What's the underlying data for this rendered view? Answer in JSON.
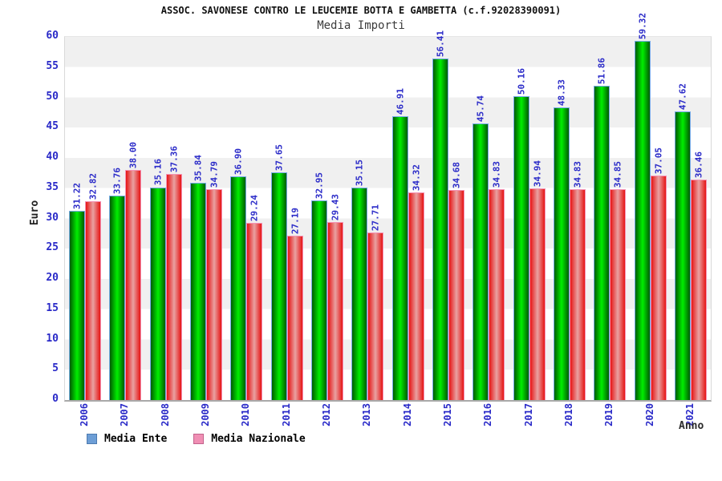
{
  "header": {
    "title": "ASSOC. SAVONESE CONTRO LE LEUCEMIE BOTTA E GAMBETTA (c.f.92028390091)",
    "subtitle": "Media Importi"
  },
  "chart_data": {
    "type": "bar",
    "title": "ASSOC. SAVONESE CONTRO LE LEUCEMIE BOTTA E GAMBETTA (c.f.92028390091)",
    "subtitle": "Media Importi",
    "xlabel": "Anno",
    "ylabel": "Euro",
    "ylim": [
      0,
      60
    ],
    "ytick_step": 5,
    "grid": "horizontal-bands",
    "band_colors": [
      "#f0f0f0",
      "#ffffff"
    ],
    "legend_position": "bottom-left",
    "categories": [
      "2006",
      "2007",
      "2008",
      "2009",
      "2010",
      "2011",
      "2012",
      "2013",
      "2014",
      "2015",
      "2016",
      "2017",
      "2018",
      "2019",
      "2020",
      "2021"
    ],
    "series": [
      {
        "name": "Media Ente",
        "legend_color": "#6d9ed6",
        "legend_border": "#4d7bb0",
        "bar_edge_color": "#005c00",
        "bar_center_color": "#00ee00",
        "bar_border_color": "#74aae6",
        "values": [
          31.22,
          33.76,
          35.16,
          35.84,
          36.9,
          37.65,
          32.95,
          35.15,
          46.91,
          56.41,
          45.74,
          50.16,
          48.33,
          51.86,
          59.32,
          47.62
        ]
      },
      {
        "name": "Media Nazionale",
        "legend_color": "#f08fb4",
        "legend_border": "#c2638c",
        "bar_edge_color": "#e61414",
        "bar_center_color": "#e9a2a2",
        "bar_border_color": "#f492b4",
        "values": [
          32.82,
          38.0,
          37.36,
          34.79,
          29.24,
          27.19,
          29.43,
          27.71,
          34.32,
          34.68,
          34.83,
          34.94,
          34.83,
          34.85,
          37.05,
          36.46
        ]
      }
    ],
    "tick_label_color": "#2a2ac8",
    "value_label_color": "#2a2ac8"
  }
}
